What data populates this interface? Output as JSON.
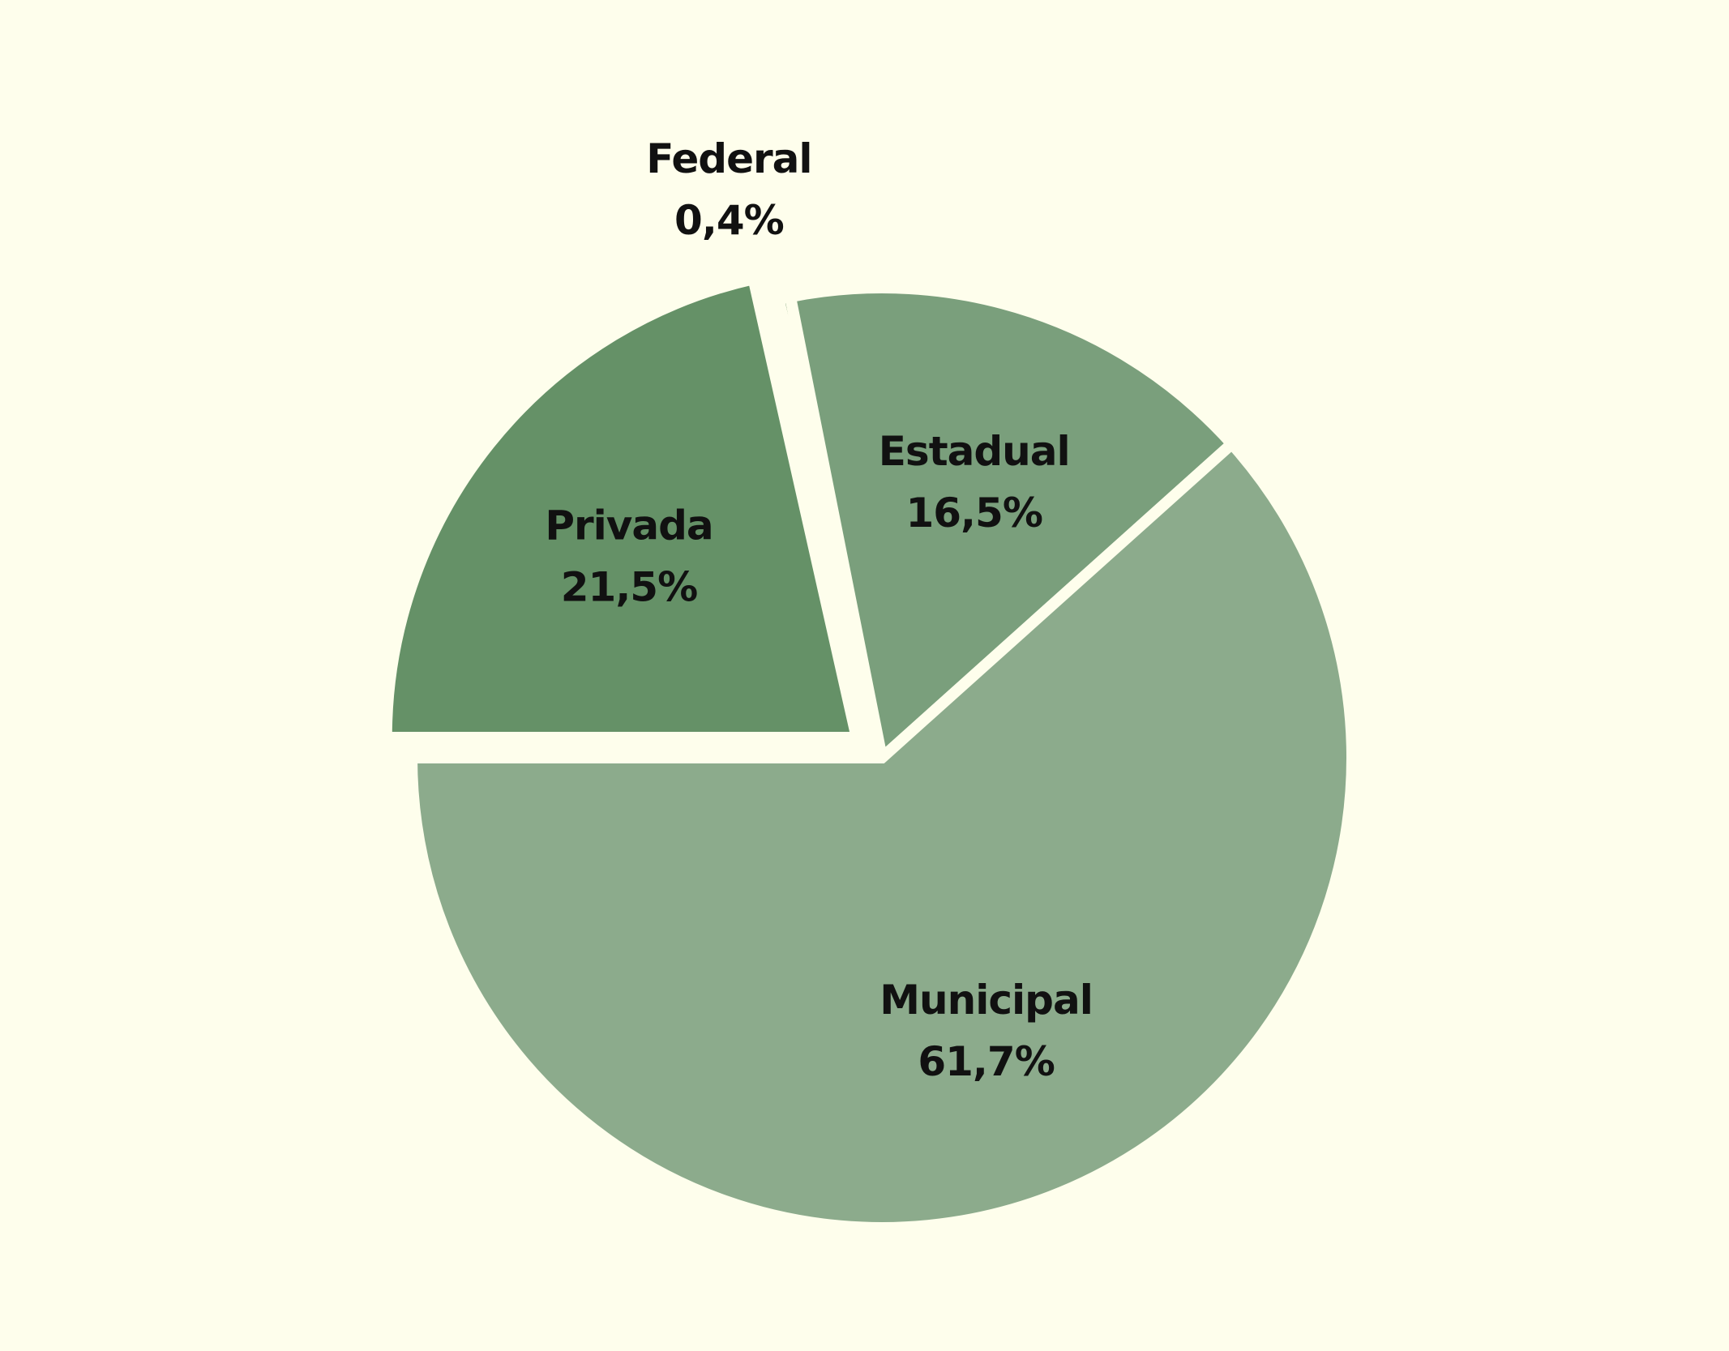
{
  "chart_data": {
    "type": "pie",
    "title": "",
    "start_angle_deg": 180,
    "direction": "clockwise",
    "slices": [
      {
        "label": "Privada",
        "percent_label": "21,5%",
        "value": 21.5,
        "color": "#659167",
        "exploded": true
      },
      {
        "label": "Federal",
        "percent_label": "0,4%",
        "value": 0.4,
        "color": "#3f7440",
        "exploded": false
      },
      {
        "label": "Estadual",
        "percent_label": "16,5%",
        "value": 16.5,
        "color": "#7a9f7c",
        "exploded": false
      },
      {
        "label": "Municipal",
        "percent_label": "61,7%",
        "value": 61.7,
        "color": "#8cab8c",
        "exploded": false
      }
    ],
    "background": "#fefeec"
  }
}
